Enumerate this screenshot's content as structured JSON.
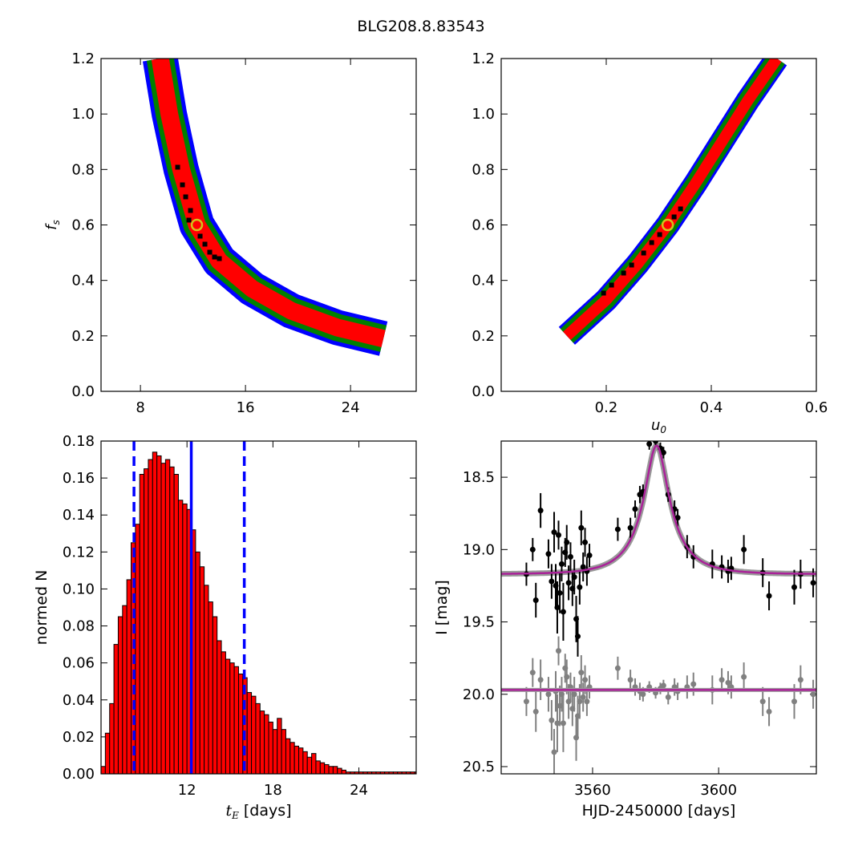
{
  "figure": {
    "title": "BLG208.8.83543"
  },
  "chart_data": [
    {
      "type": "heatmap",
      "panel": "top-left",
      "title": "",
      "xlabel": "",
      "ylabel": "f_s",
      "xlim": [
        5,
        29
      ],
      "ylim": [
        0.0,
        1.2
      ],
      "xticks": [
        "8",
        "16",
        "24"
      ],
      "yticks": [
        "0.0",
        "0.2",
        "0.4",
        "0.6",
        "0.8",
        "1.0",
        "1.2"
      ],
      "confidence_colors": {
        "outer": "#0000ff",
        "middle": "#008000",
        "inner": "#ff0000",
        "best": "#000000"
      },
      "ridge_curve": [
        {
          "x": 9.5,
          "y": 1.2
        },
        {
          "x": 10.2,
          "y": 1.0
        },
        {
          "x": 11.1,
          "y": 0.8
        },
        {
          "x": 12.3,
          "y": 0.6
        },
        {
          "x": 14.0,
          "y": 0.47
        },
        {
          "x": 16.5,
          "y": 0.37
        },
        {
          "x": 19.5,
          "y": 0.29
        },
        {
          "x": 23.0,
          "y": 0.23
        },
        {
          "x": 26.5,
          "y": 0.19
        }
      ],
      "best_fit": {
        "x": 12.3,
        "y": 0.6
      }
    },
    {
      "type": "heatmap",
      "panel": "top-right",
      "title": "",
      "xlabel": "u_0",
      "ylabel": "",
      "xlim": [
        0.0,
        0.6
      ],
      "ylim": [
        0.0,
        1.2
      ],
      "xticks": [
        "0.2",
        "0.4",
        "0.6"
      ],
      "yticks": [
        "0.0",
        "0.2",
        "0.4",
        "0.6",
        "0.8",
        "1.0",
        "1.2"
      ],
      "confidence_colors": {
        "outer": "#0000ff",
        "middle": "#008000",
        "inner": "#ff0000",
        "best": "#000000"
      },
      "ridge_curve": [
        {
          "x": 0.125,
          "y": 0.2
        },
        {
          "x": 0.2,
          "y": 0.33
        },
        {
          "x": 0.26,
          "y": 0.46
        },
        {
          "x": 0.317,
          "y": 0.6
        },
        {
          "x": 0.37,
          "y": 0.75
        },
        {
          "x": 0.42,
          "y": 0.9
        },
        {
          "x": 0.47,
          "y": 1.05
        },
        {
          "x": 0.525,
          "y": 1.2
        }
      ],
      "best_fit": {
        "x": 0.317,
        "y": 0.6
      }
    },
    {
      "type": "bar",
      "panel": "bottom-left",
      "title": "",
      "xlabel": "t_E  [days]",
      "ylabel": "normed N",
      "xlim": [
        6,
        28
      ],
      "ylim": [
        0.0,
        0.18
      ],
      "xticks": [
        "12",
        "18",
        "24"
      ],
      "yticks": [
        "0.00",
        "0.02",
        "0.04",
        "0.06",
        "0.08",
        "0.10",
        "0.12",
        "0.14",
        "0.16",
        "0.18"
      ],
      "bar_color": "#ff0000",
      "bin_start": 6.0,
      "bin_width": 0.3,
      "values": [
        0.004,
        0.022,
        0.038,
        0.07,
        0.085,
        0.091,
        0.105,
        0.125,
        0.135,
        0.162,
        0.165,
        0.17,
        0.174,
        0.172,
        0.168,
        0.17,
        0.166,
        0.162,
        0.148,
        0.146,
        0.143,
        0.132,
        0.12,
        0.112,
        0.102,
        0.093,
        0.085,
        0.072,
        0.066,
        0.062,
        0.06,
        0.058,
        0.054,
        0.052,
        0.044,
        0.042,
        0.038,
        0.034,
        0.032,
        0.028,
        0.024,
        0.03,
        0.024,
        0.019,
        0.017,
        0.015,
        0.014,
        0.012,
        0.009,
        0.011,
        0.007,
        0.006,
        0.005,
        0.004,
        0.004,
        0.003,
        0.002,
        0.001,
        0.001,
        0.001,
        0.001,
        0.001,
        0.001,
        0.001,
        0.001,
        0.001,
        0.001,
        0.001,
        0.001,
        0.001,
        0.001,
        0.001,
        0.001,
        0.001
      ],
      "median_line": {
        "x": 12.3,
        "color": "#0000ff",
        "style": "solid"
      },
      "interval_lines": [
        {
          "x": 8.3,
          "color": "#0000ff",
          "style": "dashed"
        },
        {
          "x": 16.0,
          "color": "#0000ff",
          "style": "dashed"
        }
      ]
    },
    {
      "type": "scatter",
      "panel": "bottom-right",
      "title": "",
      "xlabel": "HJD-2450000 [days]",
      "ylabel": "I [mag]",
      "xlim": [
        3531,
        3631
      ],
      "ylim": [
        20.55,
        18.25
      ],
      "xticks": [
        "3560",
        "3600"
      ],
      "yticks": [
        "18.5",
        "19.0",
        "19.5",
        "20.0",
        "20.5"
      ],
      "model": {
        "color": "#aa2299",
        "baseline": 19.17,
        "peak": 18.28,
        "t0": 3580.3,
        "tE": 12.3,
        "u0": 0.317
      },
      "residual_model": {
        "color": "#aa2299",
        "level": 19.97
      },
      "series": [
        {
          "name": "",
          "color": "#000000",
          "points": [
            {
              "x": 3539,
              "y": 19.17,
              "err": 0.08
            },
            {
              "x": 3541,
              "y": 19.0,
              "err": 0.08
            },
            {
              "x": 3542,
              "y": 19.35,
              "err": 0.12
            },
            {
              "x": 3543.5,
              "y": 18.73,
              "err": 0.12
            },
            {
              "x": 3546,
              "y": 19.03,
              "err": 0.1
            },
            {
              "x": 3547,
              "y": 19.22,
              "err": 0.12
            },
            {
              "x": 3547.8,
              "y": 18.88,
              "err": 0.14
            },
            {
              "x": 3548.3,
              "y": 19.25,
              "err": 0.15
            },
            {
              "x": 3548.8,
              "y": 19.4,
              "err": 0.18
            },
            {
              "x": 3549.2,
              "y": 18.9,
              "err": 0.1
            },
            {
              "x": 3549.6,
              "y": 19.3,
              "err": 0.14
            },
            {
              "x": 3550.2,
              "y": 19.1,
              "err": 0.12
            },
            {
              "x": 3550.7,
              "y": 19.43,
              "err": 0.2
            },
            {
              "x": 3551.3,
              "y": 19.02,
              "err": 0.1
            },
            {
              "x": 3551.8,
              "y": 18.95,
              "err": 0.12
            },
            {
              "x": 3552.4,
              "y": 19.23,
              "err": 0.12
            },
            {
              "x": 3553.0,
              "y": 19.05,
              "err": 0.1
            },
            {
              "x": 3553.6,
              "y": 19.27,
              "err": 0.12
            },
            {
              "x": 3554.2,
              "y": 19.19,
              "err": 0.12
            },
            {
              "x": 3554.8,
              "y": 19.48,
              "err": 0.16
            },
            {
              "x": 3555.3,
              "y": 19.6,
              "err": 0.14
            },
            {
              "x": 3555.9,
              "y": 19.26,
              "err": 0.12
            },
            {
              "x": 3556.4,
              "y": 18.85,
              "err": 0.12
            },
            {
              "x": 3557.0,
              "y": 19.12,
              "err": 0.1
            },
            {
              "x": 3557.6,
              "y": 18.95,
              "err": 0.1
            },
            {
              "x": 3558.2,
              "y": 19.15,
              "err": 0.1
            },
            {
              "x": 3559.0,
              "y": 19.04,
              "err": 0.08
            },
            {
              "x": 3568.0,
              "y": 18.86,
              "err": 0.08
            },
            {
              "x": 3572.0,
              "y": 18.85,
              "err": 0.07
            },
            {
              "x": 3573.5,
              "y": 18.72,
              "err": 0.06
            },
            {
              "x": 3575.0,
              "y": 18.62,
              "err": 0.06
            },
            {
              "x": 3576.0,
              "y": 18.6,
              "err": 0.05
            },
            {
              "x": 3578.0,
              "y": 18.27,
              "err": 0.04
            },
            {
              "x": 3580.0,
              "y": 18.25,
              "err": 0.04
            },
            {
              "x": 3581.5,
              "y": 18.3,
              "err": 0.04
            },
            {
              "x": 3582.5,
              "y": 18.33,
              "err": 0.04
            },
            {
              "x": 3584.0,
              "y": 18.62,
              "err": 0.05
            },
            {
              "x": 3586.0,
              "y": 18.72,
              "err": 0.06
            },
            {
              "x": 3587.0,
              "y": 18.78,
              "err": 0.06
            },
            {
              "x": 3590.0,
              "y": 18.98,
              "err": 0.08
            },
            {
              "x": 3592.0,
              "y": 19.05,
              "err": 0.08
            },
            {
              "x": 3598.0,
              "y": 19.1,
              "err": 0.1
            },
            {
              "x": 3601.0,
              "y": 19.12,
              "err": 0.08
            },
            {
              "x": 3603.0,
              "y": 19.15,
              "err": 0.08
            },
            {
              "x": 3604.0,
              "y": 19.13,
              "err": 0.08
            },
            {
              "x": 3608.0,
              "y": 19.0,
              "err": 0.1
            },
            {
              "x": 3614.0,
              "y": 19.16,
              "err": 0.1
            },
            {
              "x": 3616.0,
              "y": 19.32,
              "err": 0.1
            },
            {
              "x": 3624.0,
              "y": 19.26,
              "err": 0.12
            },
            {
              "x": 3626.0,
              "y": 19.17,
              "err": 0.1
            },
            {
              "x": 3630.0,
              "y": 19.23,
              "err": 0.1
            }
          ]
        },
        {
          "name": "",
          "color": "#808080",
          "points": [
            {
              "x": 3539,
              "y": 20.05,
              "err": 0.1
            },
            {
              "x": 3541,
              "y": 19.85,
              "err": 0.1
            },
            {
              "x": 3542,
              "y": 20.12,
              "err": 0.14
            },
            {
              "x": 3543.5,
              "y": 19.9,
              "err": 0.14
            },
            {
              "x": 3546,
              "y": 20.0,
              "err": 0.12
            },
            {
              "x": 3547,
              "y": 20.18,
              "err": 0.14
            },
            {
              "x": 3547.8,
              "y": 20.4,
              "err": 0.16
            },
            {
              "x": 3548.3,
              "y": 19.98,
              "err": 0.14
            },
            {
              "x": 3548.8,
              "y": 20.2,
              "err": 0.2
            },
            {
              "x": 3549.2,
              "y": 19.7,
              "err": 0.1
            },
            {
              "x": 3549.6,
              "y": 20.08,
              "err": 0.14
            },
            {
              "x": 3550.2,
              "y": 20.0,
              "err": 0.12
            },
            {
              "x": 3550.7,
              "y": 20.2,
              "err": 0.2
            },
            {
              "x": 3551.3,
              "y": 19.82,
              "err": 0.1
            },
            {
              "x": 3551.8,
              "y": 19.88,
              "err": 0.12
            },
            {
              "x": 3552.4,
              "y": 20.05,
              "err": 0.12
            },
            {
              "x": 3553.0,
              "y": 19.95,
              "err": 0.1
            },
            {
              "x": 3553.6,
              "y": 20.1,
              "err": 0.12
            },
            {
              "x": 3554.2,
              "y": 20.0,
              "err": 0.12
            },
            {
              "x": 3554.8,
              "y": 20.3,
              "err": 0.16
            },
            {
              "x": 3555.3,
              "y": 20.15,
              "err": 0.14
            },
            {
              "x": 3555.9,
              "y": 20.05,
              "err": 0.12
            },
            {
              "x": 3556.4,
              "y": 19.85,
              "err": 0.12
            },
            {
              "x": 3557.0,
              "y": 20.02,
              "err": 0.1
            },
            {
              "x": 3557.6,
              "y": 19.9,
              "err": 0.1
            },
            {
              "x": 3558.2,
              "y": 20.05,
              "err": 0.1
            },
            {
              "x": 3559.0,
              "y": 19.95,
              "err": 0.08
            },
            {
              "x": 3568.0,
              "y": 19.82,
              "err": 0.08
            },
            {
              "x": 3572.0,
              "y": 19.9,
              "err": 0.07
            },
            {
              "x": 3573.5,
              "y": 19.95,
              "err": 0.06
            },
            {
              "x": 3575.0,
              "y": 19.98,
              "err": 0.06
            },
            {
              "x": 3576.0,
              "y": 20.0,
              "err": 0.05
            },
            {
              "x": 3578.0,
              "y": 19.95,
              "err": 0.04
            },
            {
              "x": 3580.0,
              "y": 19.99,
              "err": 0.04
            },
            {
              "x": 3581.5,
              "y": 19.96,
              "err": 0.04
            },
            {
              "x": 3582.5,
              "y": 19.94,
              "err": 0.04
            },
            {
              "x": 3584.0,
              "y": 20.02,
              "err": 0.05
            },
            {
              "x": 3586.0,
              "y": 19.95,
              "err": 0.06
            },
            {
              "x": 3587.0,
              "y": 19.98,
              "err": 0.06
            },
            {
              "x": 3590.0,
              "y": 19.95,
              "err": 0.08
            },
            {
              "x": 3592.0,
              "y": 19.93,
              "err": 0.08
            },
            {
              "x": 3598.0,
              "y": 19.97,
              "err": 0.1
            },
            {
              "x": 3601.0,
              "y": 19.9,
              "err": 0.08
            },
            {
              "x": 3603.0,
              "y": 19.92,
              "err": 0.08
            },
            {
              "x": 3604.0,
              "y": 19.95,
              "err": 0.08
            },
            {
              "x": 3608.0,
              "y": 19.88,
              "err": 0.1
            },
            {
              "x": 3614.0,
              "y": 20.05,
              "err": 0.1
            },
            {
              "x": 3616.0,
              "y": 20.12,
              "err": 0.1
            },
            {
              "x": 3624.0,
              "y": 20.05,
              "err": 0.12
            },
            {
              "x": 3626.0,
              "y": 19.9,
              "err": 0.1
            },
            {
              "x": 3630.0,
              "y": 20.0,
              "err": 0.1
            }
          ]
        }
      ]
    }
  ]
}
